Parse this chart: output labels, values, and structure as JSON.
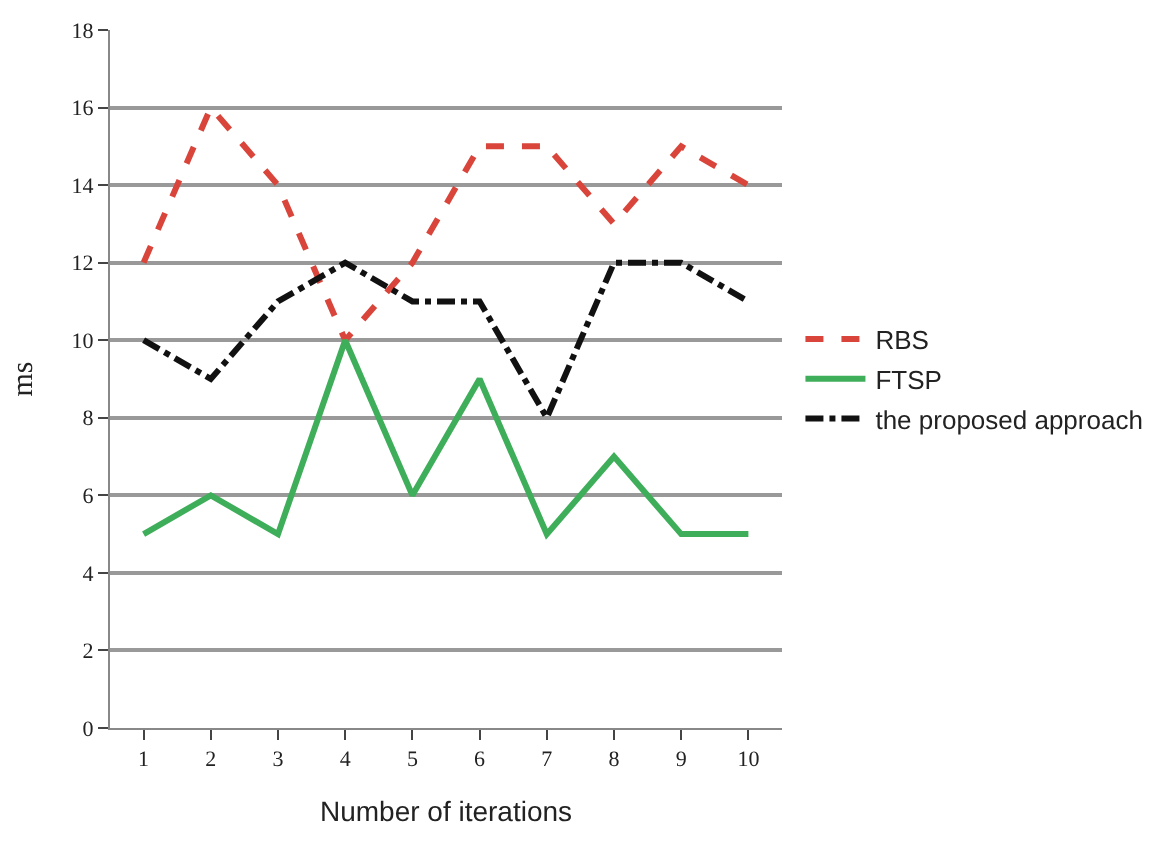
{
  "chart_data": {
    "type": "line",
    "xlabel": "Number of iterations",
    "ylabel": "ms",
    "x": [
      1,
      2,
      3,
      4,
      5,
      6,
      7,
      8,
      9,
      10
    ],
    "series": [
      {
        "name": "RBS",
        "color": "#d9453a",
        "line_style": "dashed",
        "values": [
          12,
          16,
          14,
          10,
          12,
          15,
          15,
          13,
          15,
          14
        ]
      },
      {
        "name": "FTSP",
        "color": "#3fae5a",
        "line_style": "solid",
        "values": [
          5,
          6,
          5,
          10,
          6,
          9,
          5,
          7,
          5,
          5
        ]
      },
      {
        "name": "the proposed approach",
        "color": "#111111",
        "line_style": "dashdot",
        "values": [
          10,
          9,
          11,
          12,
          11,
          11,
          8,
          12,
          12,
          11
        ]
      }
    ],
    "xlim": [
      0.5,
      10.5
    ],
    "xticks": [
      1,
      2,
      3,
      4,
      5,
      6,
      7,
      8,
      9,
      10
    ],
    "ylim": [
      0,
      18
    ],
    "yticks": [
      0,
      2,
      4,
      6,
      8,
      10,
      12,
      14,
      16,
      18
    ],
    "grid": "y",
    "legend": "right",
    "marker": "none"
  }
}
